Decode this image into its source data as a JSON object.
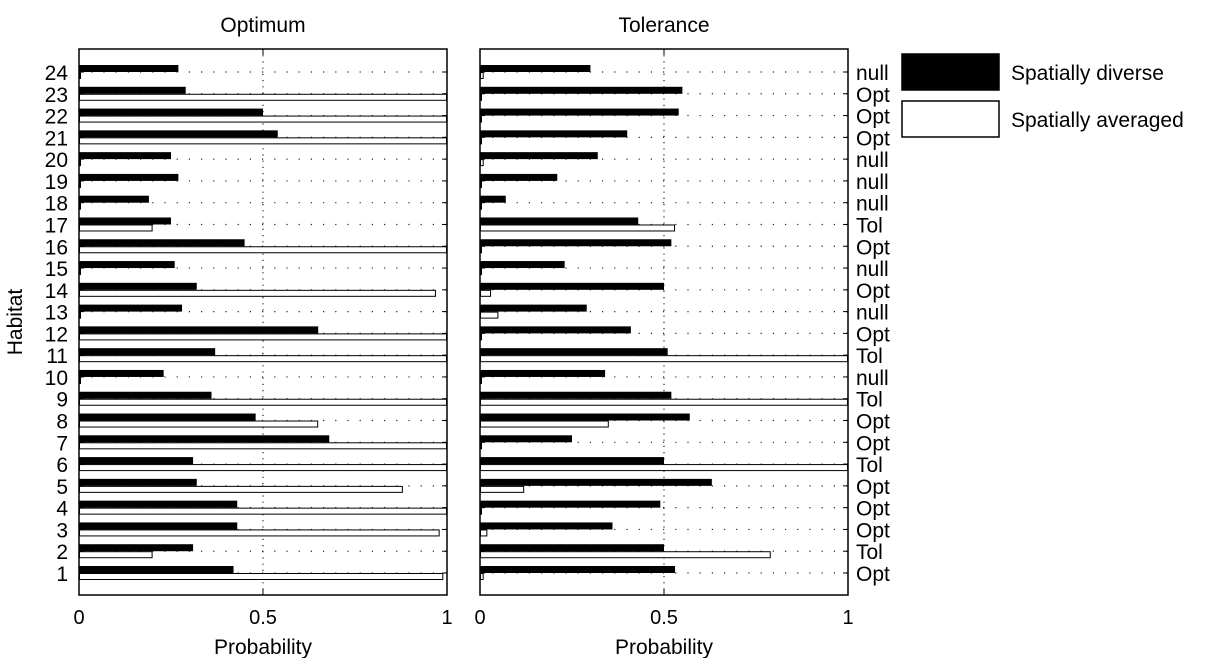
{
  "chart_data": {
    "type": "bar",
    "orientation": "horizontal",
    "ylabel": "Habitat",
    "categories": [
      "1",
      "2",
      "3",
      "4",
      "5",
      "6",
      "7",
      "8",
      "9",
      "10",
      "11",
      "12",
      "13",
      "14",
      "15",
      "16",
      "17",
      "18",
      "19",
      "20",
      "21",
      "22",
      "23",
      "24"
    ],
    "legend": {
      "placement": "right",
      "entries": [
        {
          "label": "Spatially diverse",
          "color": "#000000"
        },
        {
          "label": "Spatially averaged",
          "color": "#ffffff"
        }
      ]
    },
    "panels": [
      {
        "title": "Optimum",
        "xlabel": "Probability",
        "xlim": [
          0,
          1
        ],
        "xticks": [
          "0",
          "0.5",
          "1"
        ],
        "grid": "dotted",
        "series": [
          {
            "name": "Spatially diverse",
            "values": [
              0.42,
              0.31,
              0.43,
              0.43,
              0.32,
              0.31,
              0.68,
              0.48,
              0.36,
              0.23,
              0.37,
              0.65,
              0.28,
              0.32,
              0.26,
              0.45,
              0.25,
              0.19,
              0.27,
              0.25,
              0.54,
              0.5,
              0.29,
              0.27
            ]
          },
          {
            "name": "Spatially averaged",
            "values": [
              0.99,
              0.2,
              0.98,
              1.0,
              0.88,
              1.0,
              1.0,
              0.65,
              1.0,
              0.0,
              1.0,
              1.0,
              0.0,
              0.97,
              0.0,
              1.0,
              0.2,
              0.0,
              0.0,
              0.0,
              1.0,
              1.0,
              1.0,
              0.0
            ]
          }
        ]
      },
      {
        "title": "Tolerance",
        "xlabel": "Probability",
        "xlim": [
          0,
          1
        ],
        "xticks": [
          "0",
          "0.5",
          "1"
        ],
        "grid": "dotted",
        "series": [
          {
            "name": "Spatially diverse",
            "values": [
              0.53,
              0.5,
              0.36,
              0.49,
              0.63,
              0.5,
              0.25,
              0.57,
              0.52,
              0.34,
              0.51,
              0.41,
              0.29,
              0.5,
              0.23,
              0.52,
              0.43,
              0.07,
              0.21,
              0.32,
              0.4,
              0.54,
              0.55,
              0.3
            ]
          },
          {
            "name": "Spatially averaged",
            "values": [
              0.01,
              0.79,
              0.02,
              0.0,
              0.12,
              1.0,
              0.0,
              0.35,
              1.0,
              0.0,
              1.0,
              0.0,
              0.05,
              0.03,
              0.0,
              0.0,
              0.53,
              0.0,
              0.0,
              0.01,
              0.0,
              0.0,
              0.0,
              0.01
            ]
          }
        ]
      }
    ],
    "row_labels": [
      "Opt",
      "Tol",
      "Opt",
      "Opt",
      "Opt",
      "Tol",
      "Opt",
      "Opt",
      "Tol",
      "null",
      "Tol",
      "Opt",
      "null",
      "Opt",
      "null",
      "Opt",
      "Tol",
      "null",
      "null",
      "null",
      "Opt",
      "Opt",
      "Opt",
      "null"
    ]
  }
}
